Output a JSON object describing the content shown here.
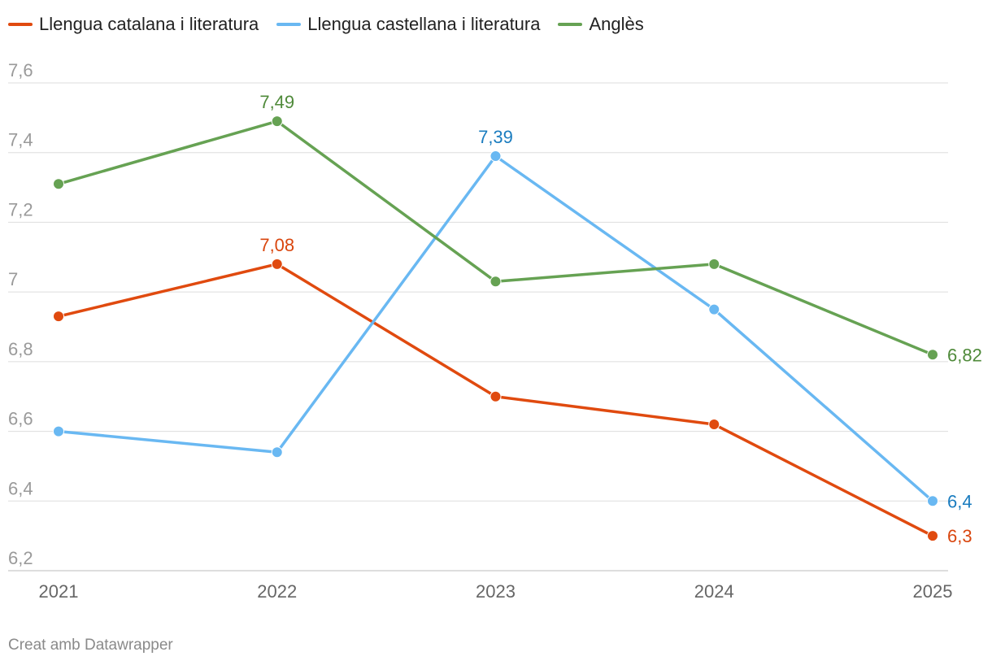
{
  "colors": {
    "catalan": "#e04a0f",
    "castellana": "#69b8f2",
    "angles": "#66a253",
    "catalan_label": "#d9460e",
    "castellana_label": "#1a7cbf",
    "angles_label": "#4f8a3a",
    "grid": "#dddddd",
    "tick": "#9a9a9a"
  },
  "legend": {
    "items": [
      {
        "label": "Llengua catalana i literatura",
        "color": "#e04a0f"
      },
      {
        "label": "Llengua castellana i literatura",
        "color": "#69b8f2"
      },
      {
        "label": "Anglès",
        "color": "#66a253"
      }
    ]
  },
  "chart_data": {
    "type": "line",
    "x": [
      "2021",
      "2022",
      "2023",
      "2024",
      "2025"
    ],
    "y_ticks": [
      "7,6",
      "7,4",
      "7,2",
      "7",
      "6,8",
      "6,6",
      "6,4",
      "6,2"
    ],
    "y_tick_values": [
      7.6,
      7.4,
      7.2,
      7.0,
      6.8,
      6.6,
      6.4,
      6.2
    ],
    "ylim": [
      6.2,
      7.6
    ],
    "grid": true,
    "legend_position": "top-left",
    "series": [
      {
        "name": "Llengua catalana i literatura",
        "key": "catalan",
        "values": [
          6.93,
          7.08,
          6.7,
          6.62,
          6.3
        ],
        "labels": [
          null,
          "7,08",
          null,
          null,
          "6,3"
        ]
      },
      {
        "name": "Llengua castellana i literatura",
        "key": "castellana",
        "values": [
          6.6,
          6.54,
          7.39,
          6.95,
          6.4
        ],
        "labels": [
          null,
          null,
          "7,39",
          null,
          "6,4"
        ]
      },
      {
        "name": "Anglès",
        "key": "angles",
        "values": [
          7.31,
          7.49,
          7.03,
          7.08,
          6.82
        ],
        "labels": [
          null,
          "7,49",
          null,
          null,
          "6,82"
        ]
      }
    ]
  },
  "footer": {
    "text": "Creat amb Datawrapper"
  }
}
